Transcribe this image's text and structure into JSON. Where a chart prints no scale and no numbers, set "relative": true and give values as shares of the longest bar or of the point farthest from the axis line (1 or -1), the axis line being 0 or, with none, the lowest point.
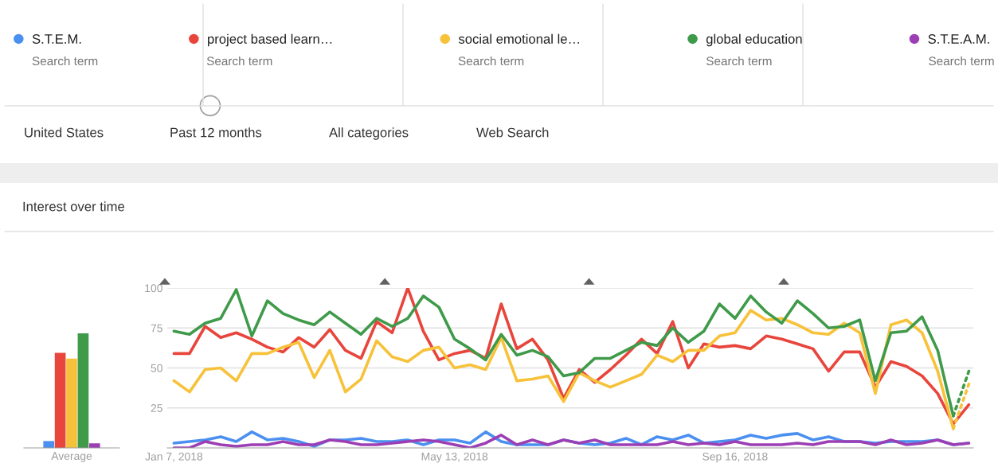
{
  "chart_data": [
    {
      "type": "bar",
      "relative": true,
      "categories": [
        "Average"
      ],
      "series": [
        {
          "color": "#4b90f0",
          "values": [
            0.06
          ]
        },
        {
          "color": "#e8453c",
          "values": [
            0.83
          ]
        },
        {
          "color": "#f7c23a",
          "values": [
            0.78
          ]
        },
        {
          "color": "#3f9a4a",
          "values": [
            1
          ]
        },
        {
          "color": "#9c3fb4",
          "values": [
            0.04
          ]
        }
      ]
    },
    {
      "type": "line",
      "title": "Interest over time",
      "legend": "top",
      "grid": "y",
      "annotations": [
        "Search term",
        "Search term",
        "Search term",
        "Search term",
        "Search term",
        "United States",
        "Past 12 months",
        "All categories",
        "Web Search"
      ],
      "x": [
        "2018-01-07",
        "2018-01-14",
        "2018-01-21",
        "2018-01-28",
        "2018-02-04",
        "2018-02-11",
        "2018-02-18",
        "2018-02-25",
        "2018-03-04",
        "2018-03-11",
        "2018-03-18",
        "2018-03-25",
        "2018-04-01",
        "2018-04-08",
        "2018-04-15",
        "2018-04-22",
        "2018-04-29",
        "2018-05-06",
        "2018-05-13",
        "2018-05-20",
        "2018-05-27",
        "2018-06-03",
        "2018-06-10",
        "2018-06-17",
        "2018-06-24",
        "2018-07-01",
        "2018-07-08",
        "2018-07-15",
        "2018-07-22",
        "2018-07-29",
        "2018-08-05",
        "2018-08-12",
        "2018-08-19",
        "2018-08-26",
        "2018-09-02",
        "2018-09-09",
        "2018-09-16",
        "2018-09-23",
        "2018-09-30",
        "2018-10-07",
        "2018-10-14",
        "2018-10-21",
        "2018-10-28",
        "2018-11-04",
        "2018-11-11",
        "2018-11-18",
        "2018-11-25",
        "2018-12-02",
        "2018-12-09",
        "2018-12-16",
        "2018-12-23",
        "2018-12-30"
      ],
      "xlim": [
        "2018-01-04",
        "2019-01-01"
      ],
      "xticks": [
        {
          "value": "2018-01-07",
          "label": "Jan 7, 2018"
        },
        {
          "value": "2018-05-13",
          "label": "May 13, 2018"
        },
        {
          "value": "2018-09-16",
          "label": "Sep 16, 2018"
        }
      ],
      "ylim": [
        0,
        100
      ],
      "yticks": [
        25,
        50,
        75,
        100
      ],
      "series": [
        {
          "name": "S.T.E.M.",
          "color": "#4b90f0",
          "values": [
            3,
            4,
            5,
            7,
            4,
            10,
            5,
            6,
            4,
            1,
            5,
            5,
            6,
            4,
            4,
            5,
            2,
            5,
            5,
            3,
            10,
            4,
            2,
            2,
            2,
            5,
            3,
            2,
            3,
            6,
            2,
            7,
            5,
            8,
            3,
            4,
            5,
            8,
            6,
            8,
            9,
            5,
            7,
            4,
            4,
            3,
            4,
            4,
            4,
            5,
            2,
            3
          ]
        },
        {
          "name": "project based learn…",
          "color": "#e8453c",
          "values": [
            59,
            59,
            76,
            69,
            72,
            68,
            63,
            60,
            69,
            63,
            74,
            61,
            56,
            79,
            72,
            100,
            73,
            55,
            59,
            61,
            56,
            90,
            62,
            68,
            55,
            31,
            49,
            41,
            49,
            58,
            68,
            59,
            79,
            50,
            65,
            63,
            64,
            62,
            70,
            68,
            65,
            62,
            48,
            60,
            60,
            38,
            54,
            51,
            45,
            34,
            15,
            27
          ]
        },
        {
          "name": "social emotional le…",
          "color": "#f7c23a",
          "values": [
            42,
            35,
            49,
            50,
            42,
            59,
            59,
            63,
            66,
            44,
            61,
            35,
            43,
            67,
            57,
            54,
            61,
            63,
            50,
            52,
            49,
            69,
            42,
            43,
            45,
            29,
            47,
            42,
            38,
            42,
            46,
            58,
            54,
            61,
            61,
            70,
            72,
            86,
            80,
            81,
            77,
            72,
            71,
            78,
            72,
            34,
            77,
            80,
            72,
            48,
            12,
            null
          ]
        },
        {
          "name": "global education",
          "color": "#3f9a4a",
          "values": [
            73,
            71,
            78,
            81,
            99,
            70,
            92,
            84,
            80,
            77,
            85,
            78,
            71,
            81,
            76,
            81,
            95,
            88,
            68,
            62,
            55,
            71,
            58,
            61,
            57,
            45,
            47,
            56,
            56,
            61,
            66,
            64,
            75,
            66,
            73,
            90,
            81,
            95,
            85,
            78,
            92,
            84,
            75,
            76,
            80,
            42,
            72,
            73,
            82,
            61,
            20,
            null
          ]
        },
        {
          "name": "S.T.E.A.M.",
          "color": "#9c3fb4",
          "values": [
            0,
            0,
            4,
            2,
            1,
            2,
            2,
            4,
            2,
            2,
            5,
            4,
            2,
            2,
            3,
            4,
            5,
            4,
            2,
            0,
            3,
            8,
            2,
            5,
            2,
            5,
            3,
            5,
            2,
            2,
            2,
            2,
            4,
            2,
            3,
            2,
            4,
            2,
            2,
            2,
            3,
            2,
            4,
            4,
            4,
            2,
            5,
            2,
            3,
            5,
            2,
            3
          ]
        },
        {
          "color": "#f7c23a",
          "line_style": "dotted",
          "values": [
            null,
            null,
            null,
            null,
            null,
            null,
            null,
            null,
            null,
            null,
            null,
            null,
            null,
            null,
            null,
            null,
            null,
            null,
            null,
            null,
            null,
            null,
            null,
            null,
            null,
            null,
            null,
            null,
            null,
            null,
            null,
            null,
            null,
            null,
            null,
            null,
            null,
            null,
            null,
            null,
            null,
            null,
            null,
            null,
            null,
            null,
            null,
            null,
            null,
            null,
            12,
            40
          ]
        },
        {
          "color": "#3f9a4a",
          "line_style": "dotted",
          "values": [
            null,
            null,
            null,
            null,
            null,
            null,
            null,
            null,
            null,
            null,
            null,
            null,
            null,
            null,
            null,
            null,
            null,
            null,
            null,
            null,
            null,
            null,
            null,
            null,
            null,
            null,
            null,
            null,
            null,
            null,
            null,
            null,
            null,
            null,
            null,
            null,
            null,
            null,
            null,
            null,
            null,
            null,
            null,
            null,
            null,
            null,
            null,
            null,
            null,
            null,
            20,
            48
          ]
        }
      ]
    }
  ]
}
